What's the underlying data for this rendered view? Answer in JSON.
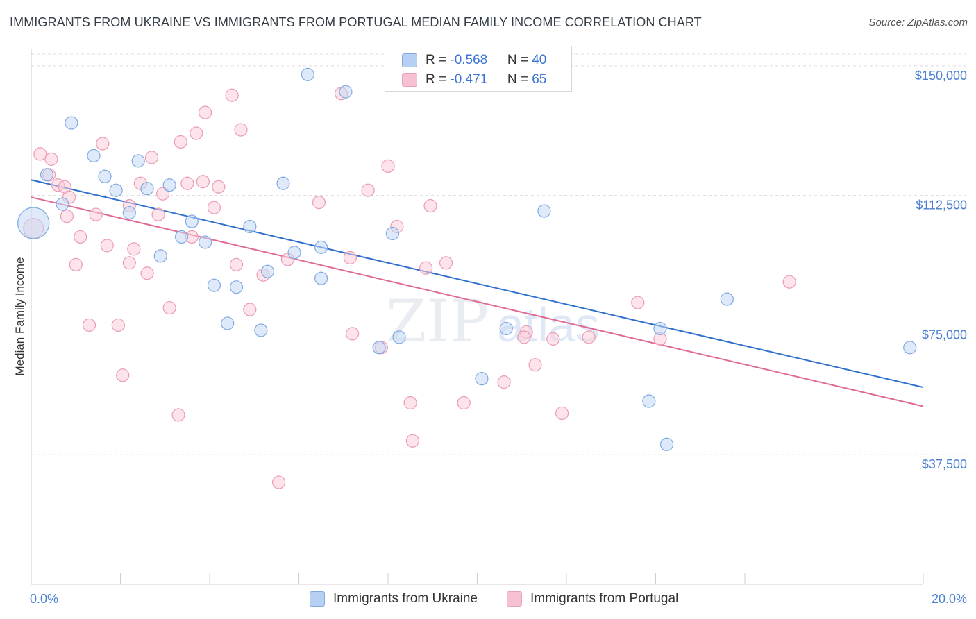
{
  "header": {
    "title": "IMMIGRANTS FROM UKRAINE VS IMMIGRANTS FROM PORTUGAL MEDIAN FAMILY INCOME CORRELATION CHART",
    "source": "Source: ZipAtlas.com"
  },
  "watermark": "ZIPatlas",
  "legend_top": {
    "rows": [
      {
        "r_label": "R = ",
        "r_value": "-0.568",
        "n_label": "N = ",
        "n_value": "40",
        "color": "#a9c8f0"
      },
      {
        "r_label": "R = ",
        "r_value": "-0.471",
        "n_label": "N = ",
        "n_value": "65",
        "color": "#f5b8cb"
      }
    ]
  },
  "legend_bottom": {
    "items": [
      {
        "label": "Immigrants from Ukraine",
        "color": "#a9c8f0"
      },
      {
        "label": "Immigrants from Portugal",
        "color": "#f5b8cb"
      }
    ]
  },
  "chart_data": {
    "type": "scatter",
    "ylabel": "Median Family Income",
    "xlabel": "",
    "xlim": [
      0,
      20
    ],
    "ylim": [
      0,
      155000
    ],
    "x_tick_labels": {
      "min": "0.0%",
      "max": "20.0%"
    },
    "y_ticks": [
      {
        "value": 150000,
        "label": "$150,000"
      },
      {
        "value": 112500,
        "label": "$112,500"
      },
      {
        "value": 75000,
        "label": "$75,000"
      },
      {
        "value": 37500,
        "label": "$37,500"
      }
    ],
    "grid": "horizontal dashed",
    "series": [
      {
        "name": "Immigrants from Ukraine",
        "color": "#7fa9e3",
        "fill": "#c3d8f4",
        "trend_color": "#2f6fce",
        "trend": {
          "x0": 0,
          "y0": 117000,
          "x1": 20,
          "y1": 57000
        },
        "points": [
          [
            0.05,
            104500,
            2.5
          ],
          [
            0.35,
            118500,
            1
          ],
          [
            0.7,
            110000,
            1
          ],
          [
            0.9,
            133500,
            1
          ],
          [
            1.4,
            124000,
            1
          ],
          [
            1.65,
            118000,
            1
          ],
          [
            1.9,
            114000,
            1
          ],
          [
            2.2,
            107500,
            1
          ],
          [
            2.4,
            122500,
            1
          ],
          [
            2.6,
            114500,
            1
          ],
          [
            2.9,
            95000,
            1
          ],
          [
            3.1,
            115500,
            1
          ],
          [
            3.37,
            100500,
            1
          ],
          [
            3.6,
            105000,
            1
          ],
          [
            3.9,
            99000,
            1
          ],
          [
            4.1,
            86500,
            1
          ],
          [
            4.4,
            75500,
            1
          ],
          [
            4.6,
            86000,
            1
          ],
          [
            4.9,
            103500,
            1
          ],
          [
            5.15,
            73500,
            1
          ],
          [
            5.3,
            90500,
            1
          ],
          [
            5.65,
            116000,
            1
          ],
          [
            5.9,
            96000,
            1
          ],
          [
            6.2,
            147500,
            1
          ],
          [
            6.5,
            97500,
            1
          ],
          [
            6.5,
            88500,
            1
          ],
          [
            7.05,
            142500,
            1
          ],
          [
            7.8,
            68500,
            1
          ],
          [
            8.1,
            101500,
            1
          ],
          [
            8.25,
            71500,
            1
          ],
          [
            10.1,
            59500,
            1
          ],
          [
            10.65,
            74000,
            1
          ],
          [
            11.5,
            108000,
            1
          ],
          [
            13.85,
            53000,
            1
          ],
          [
            14.1,
            74000,
            1
          ],
          [
            14.25,
            40500,
            1
          ],
          [
            15.6,
            82500,
            1
          ],
          [
            19.7,
            68500,
            1
          ]
        ]
      },
      {
        "name": "Immigrants from Portugal",
        "color": "#ec9ab5",
        "fill": "#f9cdd9",
        "trend_color": "#e06a93",
        "trend": {
          "x0": 0,
          "y0": 112000,
          "x1": 20,
          "y1": 51500
        },
        "points": [
          [
            0.05,
            103000,
            1.6
          ],
          [
            0.2,
            124500,
            1
          ],
          [
            0.4,
            118500,
            1
          ],
          [
            0.45,
            123000,
            1
          ],
          [
            0.6,
            115500,
            1
          ],
          [
            0.75,
            115000,
            1
          ],
          [
            0.85,
            112000,
            1
          ],
          [
            0.8,
            106500,
            1
          ],
          [
            1.1,
            100500,
            1
          ],
          [
            1.0,
            92500,
            1
          ],
          [
            1.3,
            75000,
            1
          ],
          [
            1.45,
            107000,
            1
          ],
          [
            1.6,
            127500,
            1
          ],
          [
            1.7,
            98000,
            1
          ],
          [
            1.95,
            75000,
            1
          ],
          [
            2.05,
            60500,
            1
          ],
          [
            2.2,
            109500,
            1
          ],
          [
            2.2,
            93000,
            1
          ],
          [
            2.3,
            97000,
            1
          ],
          [
            2.45,
            116000,
            1
          ],
          [
            2.6,
            90000,
            1
          ],
          [
            2.7,
            123500,
            1
          ],
          [
            2.85,
            107000,
            1
          ],
          [
            2.95,
            113000,
            1
          ],
          [
            3.1,
            80000,
            1
          ],
          [
            3.3,
            49000,
            1
          ],
          [
            3.35,
            128000,
            1
          ],
          [
            3.5,
            116000,
            1
          ],
          [
            3.6,
            100500,
            1
          ],
          [
            3.7,
            130500,
            1
          ],
          [
            3.9,
            136500,
            1
          ],
          [
            3.85,
            116500,
            1
          ],
          [
            4.1,
            109000,
            1
          ],
          [
            4.2,
            115000,
            1
          ],
          [
            4.5,
            141500,
            1
          ],
          [
            4.6,
            92500,
            1
          ],
          [
            4.7,
            131500,
            1
          ],
          [
            4.9,
            79500,
            1
          ],
          [
            5.2,
            89500,
            1
          ],
          [
            5.55,
            29500,
            1
          ],
          [
            5.75,
            94000,
            1
          ],
          [
            6.45,
            110500,
            1
          ],
          [
            6.95,
            142000,
            1
          ],
          [
            7.15,
            94500,
            1
          ],
          [
            7.2,
            72500,
            1
          ],
          [
            7.55,
            114000,
            1
          ],
          [
            7.85,
            68500,
            1
          ],
          [
            8.0,
            121000,
            1
          ],
          [
            8.2,
            103500,
            1
          ],
          [
            8.5,
            52500,
            1
          ],
          [
            8.55,
            41500,
            1
          ],
          [
            8.85,
            91500,
            1
          ],
          [
            8.95,
            109500,
            1
          ],
          [
            9.3,
            93000,
            1
          ],
          [
            9.7,
            52500,
            1
          ],
          [
            10.6,
            58500,
            1
          ],
          [
            11.1,
            73000,
            1
          ],
          [
            11.05,
            71500,
            1
          ],
          [
            11.3,
            63500,
            1
          ],
          [
            11.7,
            71000,
            1
          ],
          [
            11.9,
            49500,
            1
          ],
          [
            12.5,
            71500,
            1
          ],
          [
            14.1,
            71000,
            1
          ],
          [
            13.6,
            81500,
            1
          ],
          [
            17.0,
            87500,
            1
          ]
        ]
      }
    ]
  }
}
